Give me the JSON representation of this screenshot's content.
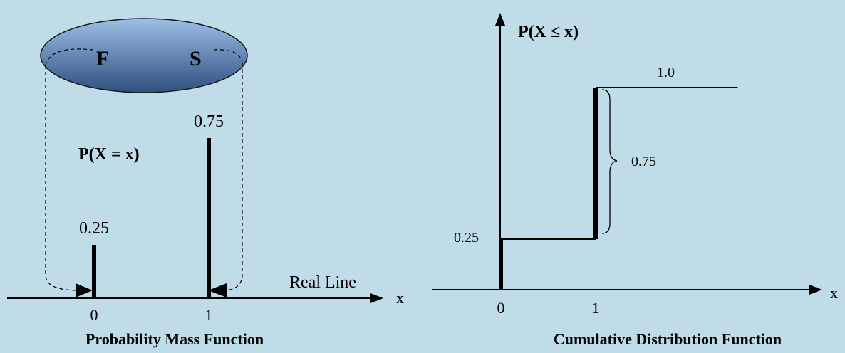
{
  "colors": {
    "background": "#c0dce8",
    "ellipse_top": "#9cc0e8",
    "ellipse_bottom": "#2f4f80",
    "ink": "#000000"
  },
  "pmf": {
    "sample_space": {
      "outcome_f": "F",
      "outcome_s": "S"
    },
    "function_label": "P(X = x)",
    "axis_label": "x",
    "line_label": "Real Line",
    "caption": "Probability Mass Function",
    "ticks": [
      {
        "x": 0,
        "label": "0"
      },
      {
        "x": 1,
        "label": "1"
      }
    ],
    "masses": [
      {
        "x": 0,
        "p": 0.25,
        "label": "0.25"
      },
      {
        "x": 1,
        "p": 0.75,
        "label": "0.75"
      }
    ]
  },
  "cdf": {
    "function_label": "P(X ≤ x)",
    "axis_label": "x",
    "caption": "Cumulative Distribution Function",
    "ticks": [
      {
        "x": 0,
        "label": "0"
      },
      {
        "x": 1,
        "label": "1"
      }
    ],
    "steps": [
      {
        "from": 0,
        "to": 1,
        "value": 0.25
      },
      {
        "from": 1,
        "to": 2.5,
        "value": 1.0
      }
    ],
    "level_labels": {
      "low": "0.25",
      "high": "1.0"
    },
    "jump_label": "0.75"
  }
}
